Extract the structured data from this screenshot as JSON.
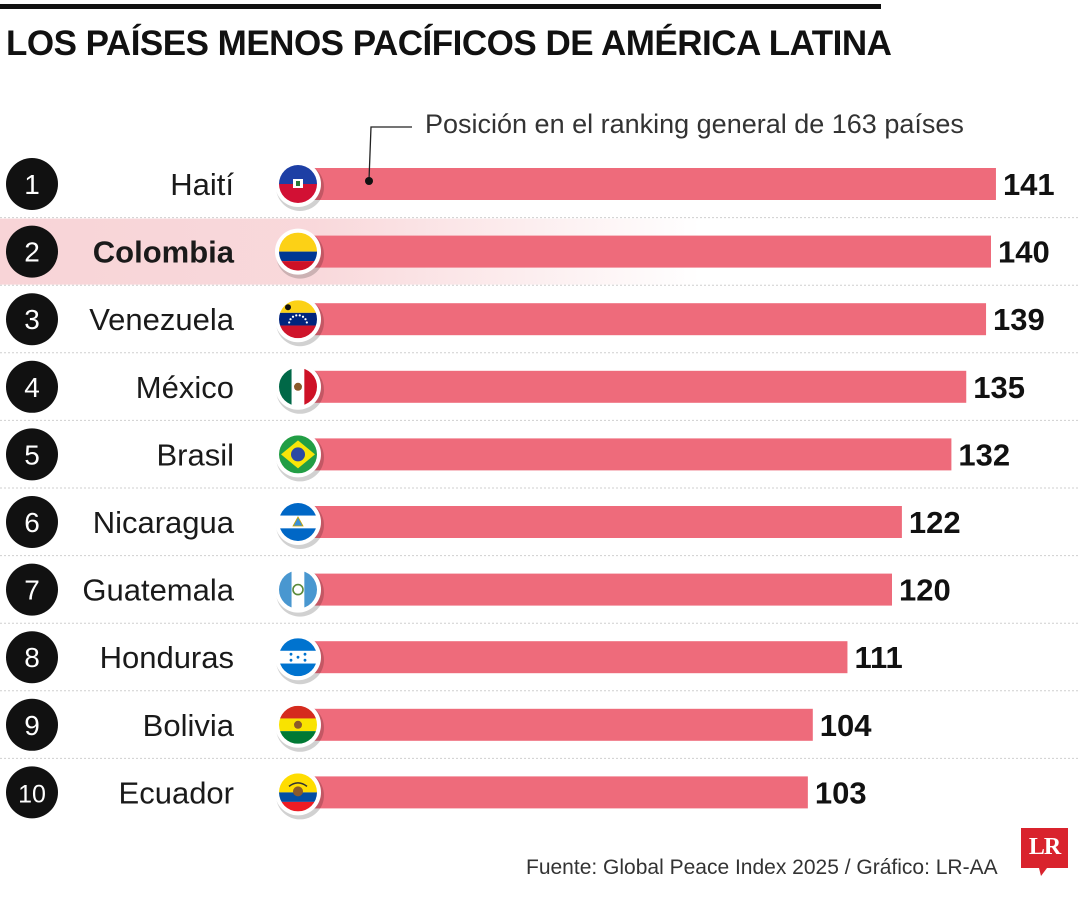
{
  "title": "LOS PAÍSES MENOS PACÍFICOS DE AMÉRICA LATINA",
  "annotation": "Posición en el ranking general de 163 países",
  "footer": "Fuente: Global Peace Index 2025 / Gráfico: LR-AA",
  "logo": "LR",
  "colors": {
    "bar": "#ee6b7b",
    "highlight": "#f8d4d7",
    "rank_circle": "#111111",
    "logo": "#d9232d"
  },
  "highlight_index": 1,
  "chart_data": {
    "type": "bar",
    "orientation": "horizontal",
    "title": "LOS PAÍSES MENOS PACÍFICOS DE AMÉRICA LATINA",
    "annotation": "Posición en el ranking general de 163 países",
    "ranks": [
      "1",
      "2",
      "3",
      "4",
      "5",
      "6",
      "7",
      "8",
      "9",
      "10"
    ],
    "categories": [
      "Haití",
      "Colombia",
      "Venezuela",
      "México",
      "Brasil",
      "Nicaragua",
      "Guatemala",
      "Honduras",
      "Bolivia",
      "Ecuador"
    ],
    "flags": [
      "haiti-flag-icon",
      "colombia-flag-icon",
      "venezuela-flag-icon",
      "mexico-flag-icon",
      "brazil-flag-icon",
      "nicaragua-flag-icon",
      "guatemala-flag-icon",
      "honduras-flag-icon",
      "bolivia-flag-icon",
      "ecuador-flag-icon"
    ],
    "values": [
      141,
      140,
      139,
      135,
      132,
      122,
      120,
      111,
      104,
      103
    ],
    "value_labels": [
      "141",
      "140",
      "139",
      "135",
      "132",
      "122",
      "120",
      "111",
      "104",
      "103"
    ],
    "grid": false,
    "legend": "none"
  }
}
